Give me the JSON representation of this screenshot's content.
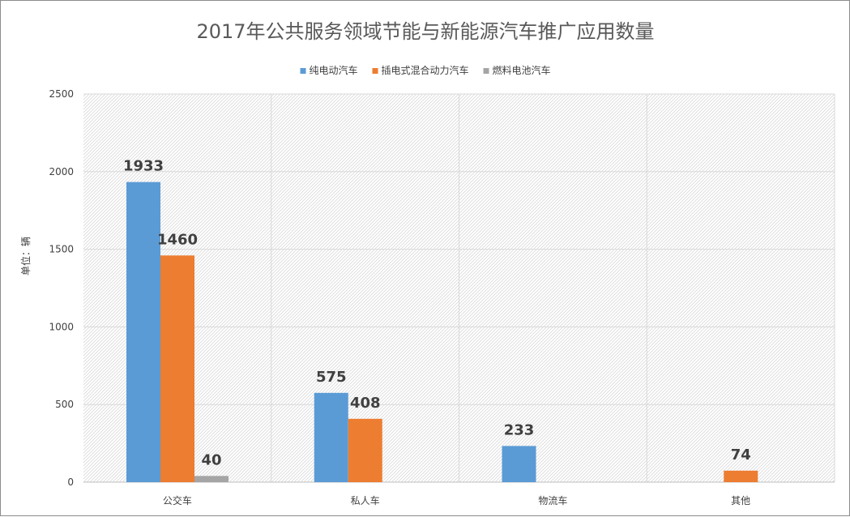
{
  "chart_data": {
    "type": "bar",
    "title": "2017年公共服务领域节能与新能源汽车推广应用数量",
    "ylabel": "单位：辆",
    "xlabel": "",
    "ylim": [
      0,
      2500
    ],
    "yticks": [
      0,
      500,
      1000,
      1500,
      2000,
      2500
    ],
    "categories": [
      "公交车",
      "私人车",
      "物流车",
      "其他"
    ],
    "series": [
      {
        "name": "纯电动汽车",
        "color": "#5b9bd5",
        "values": [
          1933,
          575,
          233,
          null
        ]
      },
      {
        "name": "插电式混合动力汽车",
        "color": "#ed7d31",
        "values": [
          1460,
          408,
          null,
          74
        ]
      },
      {
        "name": "燃料电池汽车",
        "color": "#a5a5a5",
        "values": [
          40,
          null,
          null,
          null
        ]
      }
    ],
    "legend_position": "top",
    "grid": true
  }
}
